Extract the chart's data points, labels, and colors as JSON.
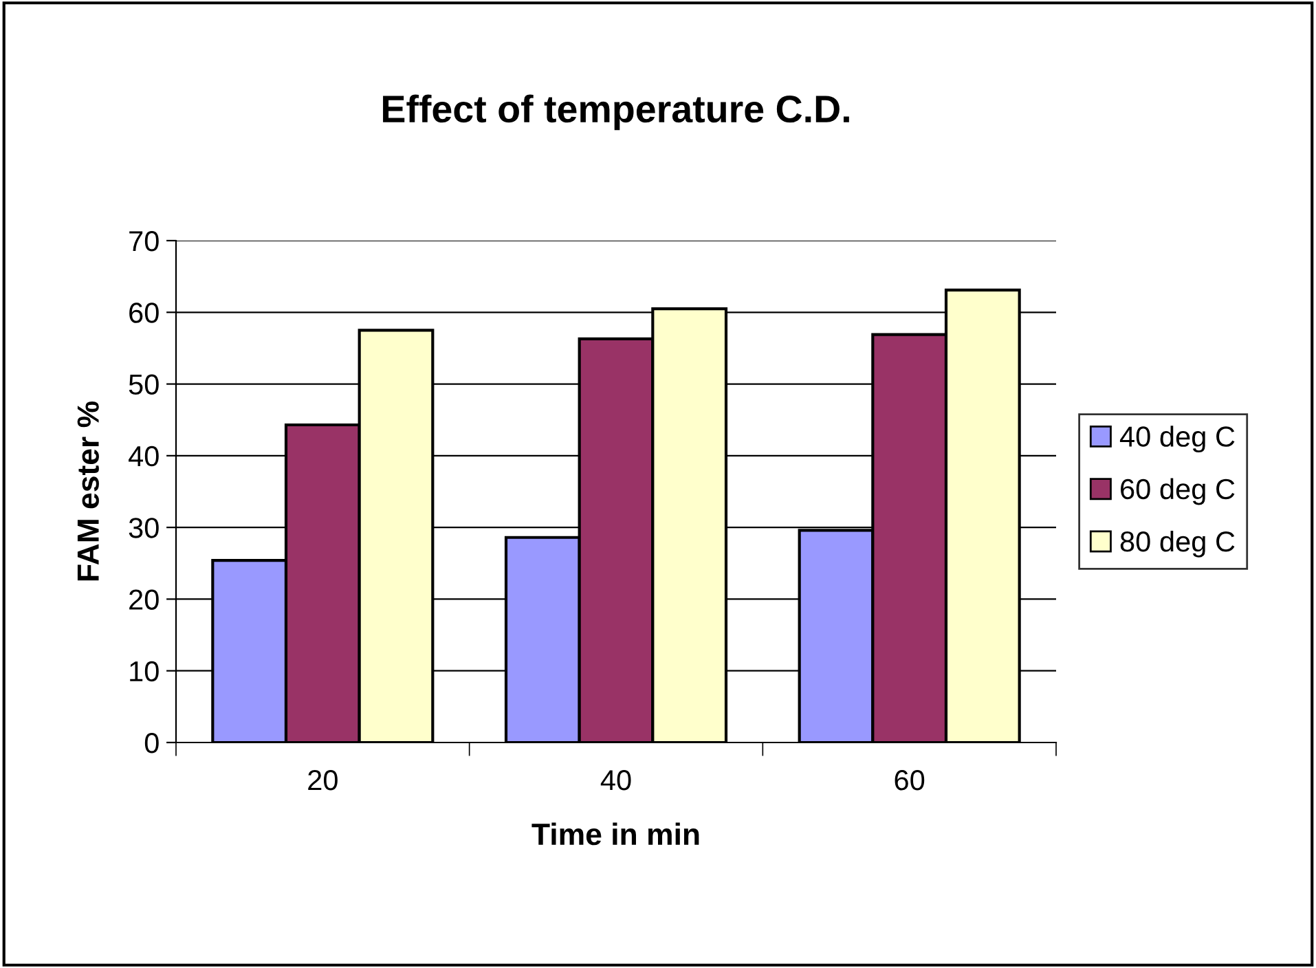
{
  "chart_data": {
    "type": "bar",
    "title": "Effect of temperature C.D.",
    "xlabel": "Time in min",
    "ylabel": "FAM ester %",
    "categories": [
      "20",
      "40",
      "60"
    ],
    "series": [
      {
        "name": "40 deg C",
        "color": "#9999ff",
        "values": [
          25.4,
          28.6,
          29.6
        ]
      },
      {
        "name": "60 deg C",
        "color": "#993366",
        "values": [
          44.3,
          56.3,
          56.9
        ]
      },
      {
        "name": "80 deg C",
        "color": "#ffffcc",
        "values": [
          57.5,
          60.5,
          63.1
        ]
      }
    ],
    "ylim": [
      0,
      70
    ],
    "yticks": [
      0,
      10,
      20,
      30,
      40,
      50,
      60,
      70
    ],
    "grid": "y",
    "legend": "right"
  }
}
